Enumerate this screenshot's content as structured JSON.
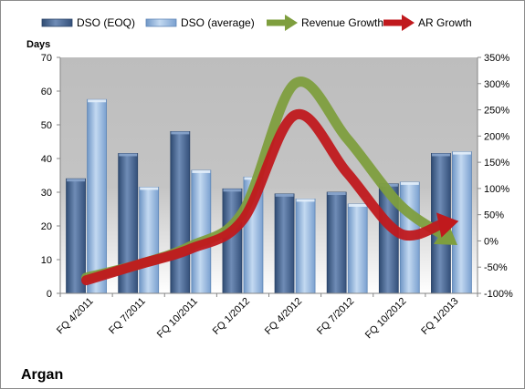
{
  "chart_data": {
    "type": "bar",
    "caption": "Argan",
    "ylabel": "Days",
    "categories": [
      "FQ 4/2011",
      "FQ 7/2011",
      "FQ 10/2011",
      "FQ 1/2012",
      "FQ 4/2012",
      "FQ 7/2012",
      "FQ 10/2012",
      "FQ 1/2013"
    ],
    "ylim": [
      0,
      70
    ],
    "y_ticks": [
      "0",
      "10",
      "20",
      "30",
      "40",
      "50",
      "60",
      "70"
    ],
    "y2lim": [
      -100,
      350
    ],
    "y2_ticks": [
      "-100%",
      "-50%",
      "0%",
      "50%",
      "100%",
      "150%",
      "200%",
      "250%",
      "300%",
      "350%"
    ],
    "grid": false,
    "legend_position": "top",
    "series": [
      {
        "name": "DSO (EOQ)",
        "type": "bar",
        "axis": "left",
        "color": "#4f6d96",
        "values": [
          34,
          41.5,
          48,
          31,
          29.5,
          30,
          32.5,
          41.5
        ]
      },
      {
        "name": "DSO (average)",
        "type": "bar",
        "axis": "left",
        "color": "#8fb4de",
        "values": [
          57.5,
          31.5,
          36.5,
          34.5,
          28,
          26.5,
          33,
          42
        ]
      },
      {
        "name": "Revenue Growth",
        "type": "line",
        "axis": "right",
        "color": "#7e9e3e",
        "values": [
          -70,
          -45,
          -10,
          55,
          300,
          195,
          70,
          0
        ]
      },
      {
        "name": "AR Growth",
        "type": "line",
        "axis": "right",
        "color": "#c0191d",
        "values": [
          -75,
          -45,
          -15,
          40,
          240,
          130,
          15,
          35
        ]
      }
    ]
  }
}
